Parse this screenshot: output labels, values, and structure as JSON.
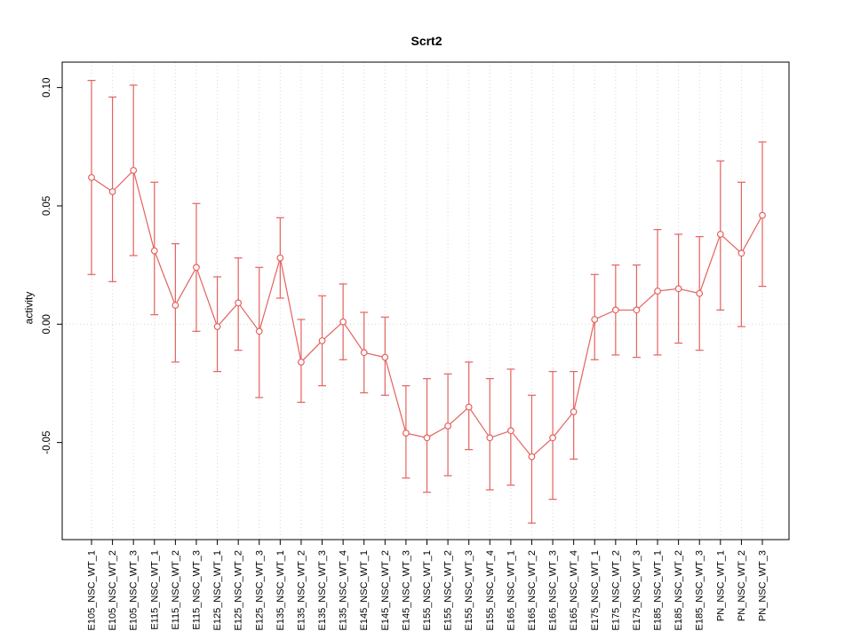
{
  "chart_data": {
    "type": "line",
    "title": "Scrt2",
    "ylabel": "activity",
    "xlabel": "",
    "point_color": "#e4625f",
    "grid_color": "#d8d8d8",
    "ylim": [
      -0.091,
      0.111
    ],
    "yticks": [
      -0.05,
      0.0,
      0.05,
      0.1
    ],
    "ytick_labels": [
      "-0.05",
      "0.00",
      "0.05",
      "0.10"
    ],
    "zero_line": 0.0,
    "legend": null,
    "categories": [
      "E105_NSC_WT_1",
      "E105_NSC_WT_2",
      "E105_NSC_WT_3",
      "E115_NSC_WT_1",
      "E115_NSC_WT_2",
      "E115_NSC_WT_3",
      "E125_NSC_WT_1",
      "E125_NSC_WT_2",
      "E125_NSC_WT_3",
      "E135_NSC_WT_1",
      "E135_NSC_WT_2",
      "E135_NSC_WT_3",
      "E135_NSC_WT_4",
      "E145_NSC_WT_1",
      "E145_NSC_WT_2",
      "E145_NSC_WT_3",
      "E155_NSC_WT_1",
      "E155_NSC_WT_2",
      "E155_NSC_WT_3",
      "E155_NSC_WT_4",
      "E165_NSC_WT_1",
      "E165_NSC_WT_2",
      "E165_NSC_WT_3",
      "E165_NSC_WT_4",
      "E175_NSC_WT_1",
      "E175_NSC_WT_2",
      "E175_NSC_WT_3",
      "E185_NSC_WT_1",
      "E185_NSC_WT_2",
      "E185_NSC_WT_3",
      "PN_NSC_WT_1",
      "PN_NSC_WT_2",
      "PN_NSC_WT_3"
    ],
    "values": [
      0.062,
      0.056,
      0.065,
      0.031,
      0.008,
      0.024,
      -0.001,
      0.009,
      -0.003,
      0.028,
      -0.016,
      -0.007,
      0.001,
      -0.012,
      -0.014,
      -0.046,
      -0.048,
      -0.043,
      -0.035,
      -0.048,
      -0.045,
      -0.056,
      -0.048,
      -0.037,
      0.002,
      0.006,
      0.006,
      0.014,
      0.015,
      0.013,
      0.038,
      0.03,
      0.046
    ],
    "lower": [
      0.021,
      0.018,
      0.029,
      0.004,
      -0.016,
      -0.003,
      -0.02,
      -0.011,
      -0.031,
      0.011,
      -0.033,
      -0.026,
      -0.015,
      -0.029,
      -0.03,
      -0.065,
      -0.071,
      -0.064,
      -0.053,
      -0.07,
      -0.068,
      -0.084,
      -0.074,
      -0.057,
      -0.015,
      -0.013,
      -0.014,
      -0.013,
      -0.008,
      -0.011,
      0.006,
      -0.001,
      0.016
    ],
    "upper": [
      0.103,
      0.096,
      0.101,
      0.06,
      0.034,
      0.051,
      0.02,
      0.028,
      0.024,
      0.045,
      0.002,
      0.012,
      0.017,
      0.005,
      0.003,
      -0.026,
      -0.023,
      -0.021,
      -0.016,
      -0.023,
      -0.019,
      -0.03,
      -0.02,
      -0.02,
      0.021,
      0.025,
      0.025,
      0.04,
      0.038,
      0.037,
      0.069,
      0.06,
      0.077
    ]
  }
}
